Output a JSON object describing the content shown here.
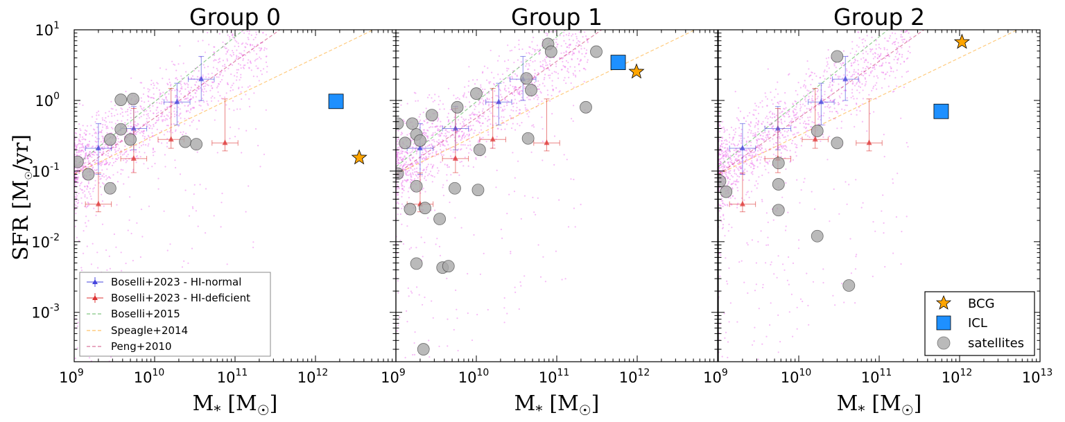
{
  "chart_data": [
    {
      "type": "scatter",
      "title": "Group 0",
      "xlabel": "M* [M☉]",
      "ylabel": "SFR [M☉/yr]",
      "xscale": "log",
      "yscale": "log",
      "xlim": [
        1000000000.0,
        10000000000000.0
      ],
      "ylim": [
        0.0002,
        10
      ],
      "bcg": {
        "x": 3500000000000.0,
        "y": 0.155
      },
      "icl": {
        "x": 1800000000000.0,
        "y": 0.97
      },
      "satellites": [
        [
          1100000000.0,
          0.135
        ],
        [
          1500000000.0,
          0.09
        ],
        [
          2800000000.0,
          0.057
        ],
        [
          2800000000.0,
          0.28
        ],
        [
          3800000000.0,
          0.39
        ],
        [
          3800000000.0,
          1.02
        ],
        [
          5400000000.0,
          1.05
        ],
        [
          5000000000.0,
          0.28
        ],
        [
          24000000000.0,
          0.26
        ],
        [
          33000000000.0,
          0.24
        ]
      ]
    },
    {
      "type": "scatter",
      "title": "Group 1",
      "xlabel": "M* [M☉]",
      "xscale": "log",
      "yscale": "log",
      "xlim": [
        1000000000.0,
        10000000000000.0
      ],
      "ylim": [
        0.0002,
        10
      ],
      "bcg": {
        "x": 980000000000.0,
        "y": 2.55
      },
      "icl": {
        "x": 580000000000.0,
        "y": 3.45
      },
      "satellites": [
        [
          1050000000.0,
          0.47
        ],
        [
          1050000000.0,
          0.092
        ],
        [
          1300000000.0,
          0.25
        ],
        [
          1600000000.0,
          0.47
        ],
        [
          1800000000.0,
          0.33
        ],
        [
          2000000000.0,
          0.27
        ],
        [
          1800000000.0,
          0.061
        ],
        [
          1500000000.0,
          0.029
        ],
        [
          2300000000.0,
          0.03
        ],
        [
          1800000000.0,
          0.0049
        ],
        [
          2200000000.0,
          0.0003
        ],
        [
          2800000000.0,
          0.62
        ],
        [
          3500000000.0,
          0.021
        ],
        [
          3800000000.0,
          0.0043
        ],
        [
          4500000000.0,
          0.0045
        ],
        [
          5400000000.0,
          0.057
        ],
        [
          5800000000.0,
          0.8
        ],
        [
          10000000000.0,
          1.25
        ],
        [
          10500000000.0,
          0.054
        ],
        [
          11000000000.0,
          0.2
        ],
        [
          42000000000.0,
          2.05
        ],
        [
          48000000000.0,
          1.4
        ],
        [
          44000000000.0,
          0.29
        ],
        [
          78000000000.0,
          6.3
        ],
        [
          85000000000.0,
          4.9
        ],
        [
          310000000000.0,
          4.9
        ],
        [
          230000000000.0,
          0.8
        ]
      ]
    },
    {
      "type": "scatter",
      "title": "Group 2",
      "xlabel": "M* [M☉]",
      "xscale": "log",
      "yscale": "log",
      "xlim": [
        1000000000.0,
        10000000000000.0
      ],
      "ylim": [
        0.0002,
        10
      ],
      "bcg": {
        "x": 1070000000000.0,
        "y": 6.7
      },
      "icl": {
        "x": 590000000000.0,
        "y": 0.7
      },
      "satellites": [
        [
          1050000000.0,
          0.072
        ],
        [
          1250000000.0,
          0.051
        ],
        [
          5600000000.0,
          0.13
        ],
        [
          5600000000.0,
          0.065
        ],
        [
          5600000000.0,
          0.028
        ],
        [
          17000000000.0,
          0.37
        ],
        [
          17000000000.0,
          0.012
        ],
        [
          30000000000.0,
          4.2
        ],
        [
          30000000000.0,
          0.25
        ],
        [
          42000000000.0,
          0.0024
        ]
      ]
    }
  ],
  "reference": {
    "boselli2023_normal": [
      [
        2000000000.0,
        0.21,
        0.12,
        0.26
      ],
      [
        5500000000.0,
        0.4,
        0.2,
        0.42
      ],
      [
        19000000000.0,
        0.95,
        0.5,
        0.8
      ],
      [
        38000000000.0,
        2.0,
        1.0,
        2.2
      ]
    ],
    "boselli2023_deficient": [
      [
        2000000000.0,
        0.034,
        0.0075,
        0.06
      ],
      [
        5500000000.0,
        0.15,
        0.055,
        0.62
      ],
      [
        16000000000.0,
        0.28,
        0.07,
        1.2
      ],
      [
        75000000000.0,
        0.25,
        0.057,
        0.8
      ]
    ],
    "lines": [
      {
        "name": "Boselli+2015",
        "color": "#2ca02c",
        "x0": 1000000000.0,
        "y0": 0.115,
        "slope": 0.92
      },
      {
        "name": "Speagle+2014",
        "color": "#ff9900",
        "x0": 1000000000.0,
        "y0": 0.09,
        "slope": 0.55
      },
      {
        "name": "Peng+2010",
        "color": "#c2185b",
        "x0": 1000000000.0,
        "y0": 0.09,
        "slope": 0.8
      }
    ]
  },
  "tick_labels": {
    "x": [
      "10",
      "9",
      "10",
      "10",
      "10",
      "11",
      "10",
      "12",
      "10",
      "13"
    ],
    "y": [
      "10",
      "1",
      "10",
      "0",
      "10",
      "-1",
      "10",
      "-2",
      "10",
      "-3"
    ]
  },
  "axis_labels": {
    "x": "M",
    "x_sub": "*",
    "x_unit": "[M",
    "x_unit_sub": "☉",
    "x_close": "]",
    "y_main": "SFR",
    "y_unit": "[M",
    "y_unit_sub": "☉",
    "y_tail": "/yr]"
  },
  "titles": [
    "Group 0",
    "Group 1",
    "Group 2"
  ],
  "legend_left": {
    "items": [
      "Boselli+2023 - HI-normal",
      "Boselli+2023 - HI-deficient",
      "Boselli+2015",
      "Speagle+2014",
      "Peng+2010"
    ]
  },
  "legend_right": {
    "items": [
      "BCG",
      "ICL",
      "satellites"
    ]
  },
  "colors": {
    "bcg": "#ffa500",
    "icl": "#1e90ff",
    "satellite": "#a9a9a9",
    "hi_normal": "#4444dd",
    "hi_deficient": "#dd3333",
    "cloud": "#ee82ee"
  }
}
